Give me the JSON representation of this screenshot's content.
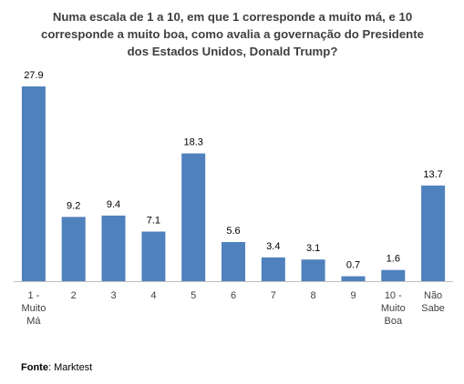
{
  "chart_data": {
    "type": "bar",
    "title_lines": [
      "Numa escala de 1 a 10, em que 1 corresponde a muito má, e 10",
      "corresponde a muito boa, como avalia a governação do Presidente",
      "dos Estados Unidos, Donald Trump?"
    ],
    "categories": [
      [
        "1 -",
        "Muito",
        "Má"
      ],
      [
        "2"
      ],
      [
        "3"
      ],
      [
        "4"
      ],
      [
        "5"
      ],
      [
        "6"
      ],
      [
        "7"
      ],
      [
        "8"
      ],
      [
        "9"
      ],
      [
        "10 -",
        "Muito",
        "Boa"
      ],
      [
        "Não",
        "Sabe"
      ]
    ],
    "values": [
      27.9,
      9.2,
      9.4,
      7.1,
      18.3,
      5.6,
      3.4,
      3.1,
      0.7,
      1.6,
      13.7
    ],
    "value_labels": [
      "27.9",
      "9.2",
      "9.4",
      "7.1",
      "18.3",
      "5.6",
      "3.4",
      "3.1",
      "0.7",
      "1.6",
      "13.7"
    ],
    "ylim": [
      0,
      27.9
    ],
    "bar_color": "#4f81bd",
    "axis_color": "#bfbfbf",
    "grid": false,
    "legend": "none"
  },
  "source": {
    "label": "Fonte",
    "text": ": Marktest"
  }
}
